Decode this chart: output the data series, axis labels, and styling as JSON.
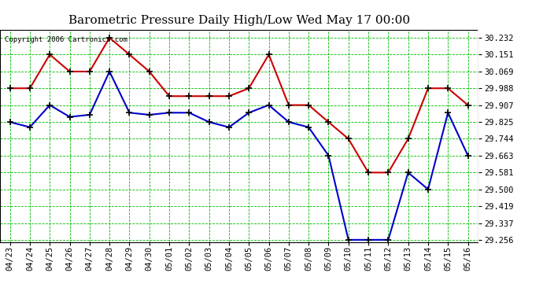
{
  "title": "Barometric Pressure Daily High/Low Wed May 17 00:00",
  "copyright_text": "Copyright 2006 Cartronics.com",
  "background_color": "#ffffff",
  "plot_bg_color": "#ffffff",
  "grid_color": "#00bb00",
  "x_labels": [
    "04/23",
    "04/24",
    "04/25",
    "04/26",
    "04/27",
    "04/28",
    "04/29",
    "04/30",
    "05/01",
    "05/02",
    "05/03",
    "05/04",
    "05/05",
    "05/06",
    "05/07",
    "05/08",
    "05/09",
    "05/10",
    "05/11",
    "05/12",
    "05/13",
    "05/14",
    "05/15",
    "05/16"
  ],
  "high_values": [
    29.988,
    29.988,
    30.151,
    30.069,
    30.069,
    30.232,
    30.151,
    30.069,
    29.95,
    29.95,
    29.95,
    29.95,
    29.988,
    30.151,
    29.907,
    29.907,
    29.825,
    29.744,
    29.581,
    29.581,
    29.744,
    29.988,
    29.988,
    29.907
  ],
  "low_values": [
    29.825,
    29.8,
    29.907,
    29.85,
    29.86,
    30.069,
    29.87,
    29.86,
    29.87,
    29.87,
    29.825,
    29.8,
    29.87,
    29.907,
    29.825,
    29.8,
    29.663,
    29.256,
    29.256,
    29.256,
    29.581,
    29.5,
    29.87,
    29.663
  ],
  "y_ticks": [
    29.256,
    29.337,
    29.419,
    29.5,
    29.581,
    29.663,
    29.744,
    29.825,
    29.907,
    29.988,
    30.069,
    30.151,
    30.232
  ],
  "high_color": "#cc0000",
  "low_color": "#0000cc",
  "marker_color": "#000000",
  "line_width": 1.5,
  "title_fontsize": 11,
  "tick_fontsize": 7.5,
  "copyright_fontsize": 6.5
}
